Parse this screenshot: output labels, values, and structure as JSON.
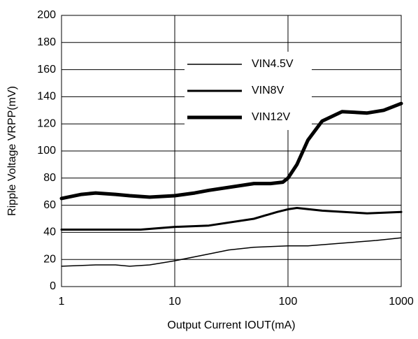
{
  "chart_data": {
    "type": "line",
    "x_label": "Output Current IOUT(mA)",
    "y_label": "Ripple Voltage VRPP(mV)",
    "xlim": [
      1,
      1000
    ],
    "xticks": [
      1,
      10,
      100,
      1000
    ],
    "xscale": "log",
    "ylim": [
      0,
      200
    ],
    "yticks": [
      0,
      20,
      40,
      60,
      80,
      100,
      120,
      140,
      160,
      180,
      200
    ],
    "grid": true,
    "legend": "top",
    "series": [
      {
        "name": "VIN4.5V",
        "color": "#000000",
        "width": 1.5,
        "x": [
          1,
          2,
          3,
          4,
          6,
          10,
          20,
          30,
          50,
          100,
          150,
          300,
          600,
          1000
        ],
        "values": [
          15,
          16,
          16,
          15,
          16,
          19,
          24,
          27,
          29,
          30,
          30,
          32,
          34,
          36
        ]
      },
      {
        "name": "VIN8V",
        "color": "#000000",
        "width": 3,
        "x": [
          1,
          2,
          5,
          10,
          20,
          50,
          80,
          100,
          120,
          200,
          500,
          1000
        ],
        "values": [
          42,
          42,
          42,
          44,
          45,
          50,
          55,
          57,
          58,
          56,
          54,
          55
        ]
      },
      {
        "name": "VIN12V",
        "color": "#000000",
        "width": 5,
        "x": [
          1,
          1.5,
          2,
          3,
          4,
          6,
          10,
          15,
          20,
          50,
          70,
          90,
          100,
          120,
          150,
          200,
          300,
          500,
          700,
          1000
        ],
        "values": [
          65,
          68,
          69,
          68,
          67,
          66,
          67,
          69,
          71,
          76,
          76,
          77,
          80,
          90,
          108,
          122,
          129,
          128,
          130,
          135
        ]
      }
    ]
  }
}
